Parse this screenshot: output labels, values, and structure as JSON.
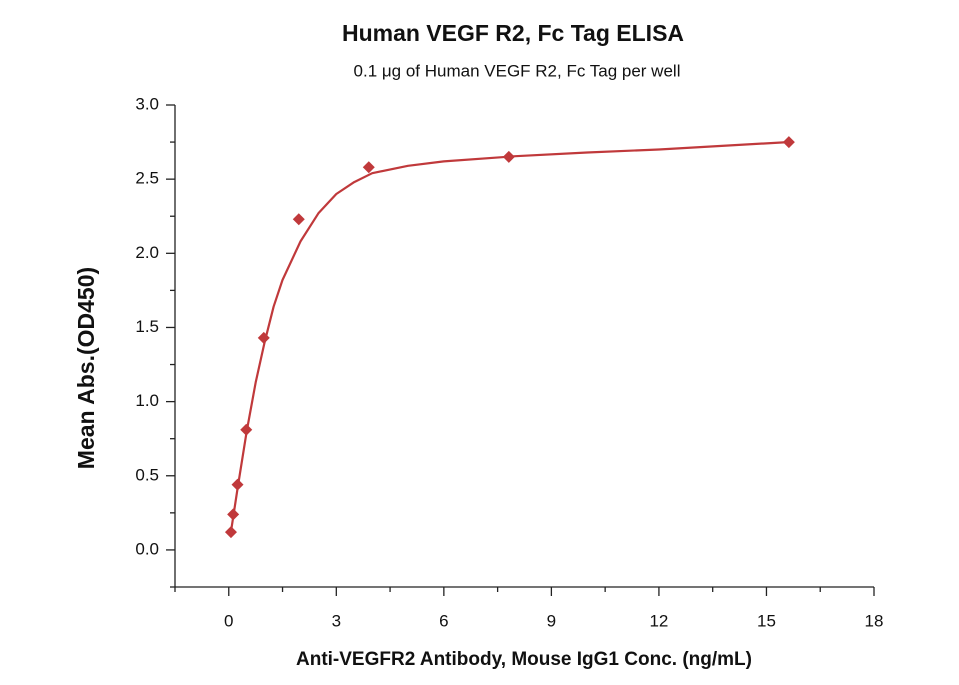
{
  "chart_data": {
    "type": "scatter",
    "title": "Human VEGF R2, Fc Tag ELISA",
    "subtitle": "0.1 μg of Human VEGF R2, Fc Tag per well",
    "x_label": "Anti-VEGFR2 Antibody, Mouse IgG1 Conc. (ng/mL)",
    "y_label": "Mean Abs.(OD450)",
    "series": [
      {
        "color": "#c0393b",
        "marker": "diamond",
        "x": [
          0.061,
          0.122,
          0.244,
          0.488,
          0.977,
          1.953,
          3.906,
          7.813,
          15.625
        ],
        "values": [
          0.12,
          0.24,
          0.44,
          0.81,
          1.43,
          2.23,
          2.58,
          2.65,
          2.75
        ]
      },
      {
        "color": "#c0393b",
        "marker": "line",
        "x": [
          0.06,
          0.25,
          0.5,
          0.75,
          1,
          1.25,
          1.5,
          2,
          2.5,
          3,
          3.5,
          4,
          5,
          6,
          8,
          10,
          12,
          15.6
        ],
        "values": [
          0.12,
          0.42,
          0.8,
          1.13,
          1.4,
          1.64,
          1.82,
          2.08,
          2.27,
          2.4,
          2.48,
          2.54,
          2.59,
          2.62,
          2.655,
          2.68,
          2.7,
          2.75
        ]
      }
    ],
    "xlim": [
      -1.5,
      18
    ],
    "ylim": [
      -0.25,
      3.0
    ],
    "xticks": [
      0,
      3,
      6,
      9,
      12,
      15,
      18
    ],
    "xminorticks": [
      -1.5,
      1.5,
      4.5,
      7.5,
      10.5,
      13.5,
      16.5
    ],
    "yticks": [
      {
        "value": 0,
        "label": "0.0"
      },
      0.5,
      {
        "value": 1,
        "label": "1.0"
      },
      1.5,
      {
        "value": 2,
        "label": "2.0"
      },
      2.5,
      {
        "value": 3,
        "label": "3.0"
      }
    ],
    "yminorticks": [
      -0.25,
      0.25,
      0.75,
      1.25,
      1.75,
      2.25,
      2.75
    ],
    "grid": false
  }
}
